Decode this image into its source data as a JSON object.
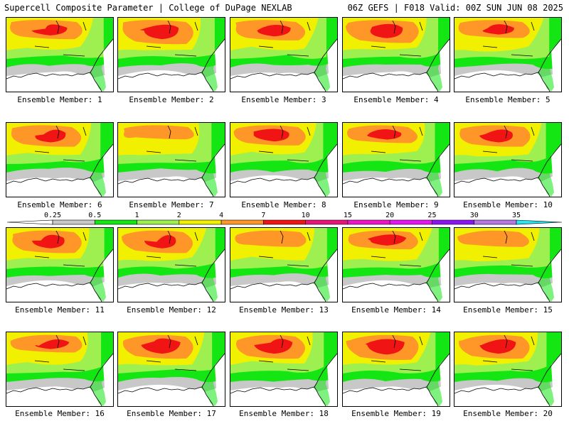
{
  "header": {
    "title_left": "Supercell Composite Parameter | College of DuPage NEXLAB",
    "title_right": "06Z GEFS | F018 Valid: 00Z SUN JUN 08 2025"
  },
  "members": [
    {
      "label": "Ensemble Member: 1",
      "intensity": 0.65
    },
    {
      "label": "Ensemble Member: 2",
      "intensity": 0.85
    },
    {
      "label": "Ensemble Member: 3",
      "intensity": 0.7
    },
    {
      "label": "Ensemble Member: 4",
      "intensity": 0.8
    },
    {
      "label": "Ensemble Member: 5",
      "intensity": 0.6
    },
    {
      "label": "Ensemble Member: 6",
      "intensity": 0.75
    },
    {
      "label": "Ensemble Member: 7",
      "intensity": 0.45
    },
    {
      "label": "Ensemble Member: 8",
      "intensity": 0.7
    },
    {
      "label": "Ensemble Member: 9",
      "intensity": 0.6
    },
    {
      "label": "Ensemble Member: 10",
      "intensity": 0.75
    },
    {
      "label": "Ensemble Member: 11",
      "intensity": 0.8
    },
    {
      "label": "Ensemble Member: 12",
      "intensity": 0.8
    },
    {
      "label": "Ensemble Member: 13",
      "intensity": 0.55
    },
    {
      "label": "Ensemble Member: 14",
      "intensity": 0.65
    },
    {
      "label": "Ensemble Member: 15",
      "intensity": 0.55
    },
    {
      "label": "Ensemble Member: 16",
      "intensity": 0.6
    },
    {
      "label": "Ensemble Member: 17",
      "intensity": 0.85
    },
    {
      "label": "Ensemble Member: 18",
      "intensity": 0.85
    },
    {
      "label": "Ensemble Member: 19",
      "intensity": 0.9
    },
    {
      "label": "Ensemble Member: 20",
      "intensity": 0.85
    }
  ],
  "colorbar": {
    "ticks": [
      "0.25",
      "0.5",
      "1",
      "2",
      "4",
      "7",
      "10",
      "15",
      "20",
      "25",
      "30",
      "35"
    ],
    "colors": [
      "#c8c8c8",
      "#14e614",
      "#9ef050",
      "#f0f000",
      "#ff9628",
      "#f01414",
      "#e6147a",
      "#f014c8",
      "#e614f0",
      "#8c14f0",
      "#b478e6",
      "#28e6f0"
    ]
  }
}
